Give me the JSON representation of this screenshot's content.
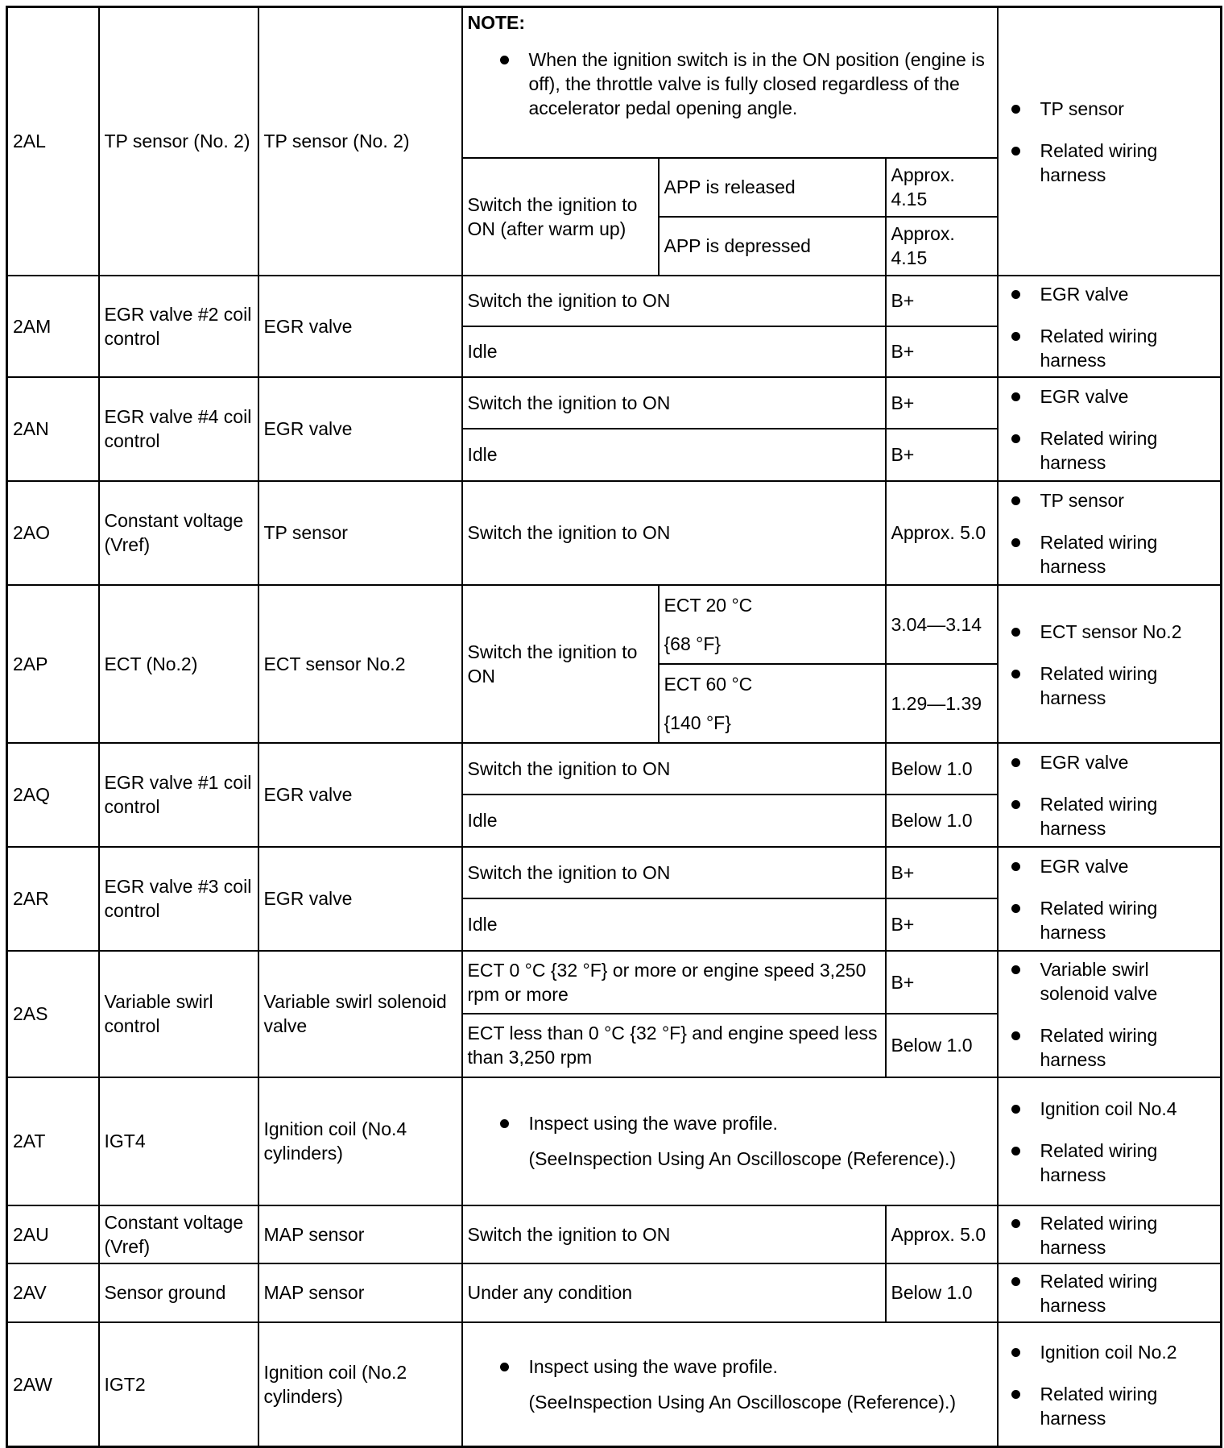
{
  "rows": [
    {
      "terminal": "2AL",
      "signal": "TP sensor (No. 2)",
      "connected": "TP sensor (No. 2)",
      "note": {
        "title": "NOTE:",
        "text": "When the ignition switch is in the ON position (engine is off), the throttle valve is fully closed regardless of the accelerator pedal opening angle."
      },
      "group": "Switch the ignition to ON (after warm up)",
      "conditions": [
        {
          "cond": "APP is released",
          "value": "Approx. 4.15"
        },
        {
          "cond": "APP is depressed",
          "value": "Approx. 4.15"
        }
      ],
      "inspection": [
        "TP sensor",
        "Related wiring harness"
      ]
    },
    {
      "terminal": "2AM",
      "signal": "EGR valve #2 coil control",
      "connected": "EGR valve",
      "conditions": [
        {
          "cond": "Switch the ignition to ON",
          "value": "B+"
        },
        {
          "cond": "Idle",
          "value": "B+"
        }
      ],
      "inspection": [
        "EGR valve",
        "Related wiring harness"
      ]
    },
    {
      "terminal": "2AN",
      "signal": "EGR valve #4 coil control",
      "connected": "EGR valve",
      "conditions": [
        {
          "cond": "Switch the ignition to ON",
          "value": "B+"
        },
        {
          "cond": "Idle",
          "value": "B+"
        }
      ],
      "inspection": [
        "EGR valve",
        "Related wiring harness"
      ]
    },
    {
      "terminal": "2AO",
      "signal": "Constant voltage (Vref)",
      "connected": "TP sensor",
      "conditions": [
        {
          "cond": "Switch the ignition to ON",
          "value": "Approx. 5.0"
        }
      ],
      "inspection": [
        "TP sensor",
        "Related wiring harness"
      ]
    },
    {
      "terminal": "2AP",
      "signal": "ECT (No.2)",
      "connected": "ECT sensor No.2",
      "group": "Switch the ignition to ON",
      "conditions": [
        {
          "cond": "ECT 20 °C",
          "cond2": "{68 °F}",
          "value": "3.04—3.14"
        },
        {
          "cond": "ECT 60 °C",
          "cond2": "{140 °F}",
          "value": "1.29—1.39"
        }
      ],
      "inspection": [
        "ECT sensor No.2",
        "Related wiring harness"
      ]
    },
    {
      "terminal": "2AQ",
      "signal": "EGR valve #1 coil control",
      "connected": "EGR valve",
      "conditions": [
        {
          "cond": "Switch the ignition to ON",
          "value": "Below 1.0"
        },
        {
          "cond": "Idle",
          "value": "Below 1.0"
        }
      ],
      "inspection": [
        "EGR valve",
        "Related wiring harness"
      ]
    },
    {
      "terminal": "2AR",
      "signal": "EGR valve #3 coil control",
      "connected": "EGR valve",
      "conditions": [
        {
          "cond": "Switch the ignition to ON",
          "value": "B+"
        },
        {
          "cond": "Idle",
          "value": "B+"
        }
      ],
      "inspection": [
        "EGR valve",
        "Related wiring harness"
      ]
    },
    {
      "terminal": "2AS",
      "signal": "Variable swirl control",
      "connected": "Variable swirl solenoid valve",
      "conditions": [
        {
          "cond": "ECT 0 °C {32 °F} or more or engine speed 3,250 rpm or more",
          "value": "B+"
        },
        {
          "cond": "ECT less than 0 °C {32 °F} and engine speed less than 3,250 rpm",
          "value": "Below 1.0"
        }
      ],
      "inspection": [
        "Variable swirl solenoid valve",
        "Related wiring harness"
      ]
    },
    {
      "terminal": "2AT",
      "signal": "IGT4",
      "connected": "Ignition coil (No.4 cylinders)",
      "wave": {
        "text": "Inspect using the wave profile.",
        "ref": "(SeeInspection Using An Oscilloscope (Reference).)"
      },
      "inspection": [
        "Ignition coil No.4",
        "Related wiring harness"
      ]
    },
    {
      "terminal": "2AU",
      "signal": "Constant voltage (Vref)",
      "connected": "MAP sensor",
      "conditions": [
        {
          "cond": "Switch the ignition to ON",
          "value": "Approx. 5.0"
        }
      ],
      "inspection": [
        "Related wiring harness"
      ]
    },
    {
      "terminal": "2AV",
      "signal": "Sensor ground",
      "connected": "MAP sensor",
      "conditions": [
        {
          "cond": "Under any condition",
          "value": "Below 1.0"
        }
      ],
      "inspection": [
        "Related wiring harness"
      ]
    },
    {
      "terminal": "2AW",
      "signal": "IGT2",
      "connected": "Ignition coil (No.2 cylinders)",
      "wave": {
        "text": "Inspect using the wave profile.",
        "ref": "(SeeInspection Using An Oscilloscope (Reference).)"
      },
      "inspection": [
        "Ignition coil No.2",
        "Related wiring harness"
      ]
    }
  ]
}
